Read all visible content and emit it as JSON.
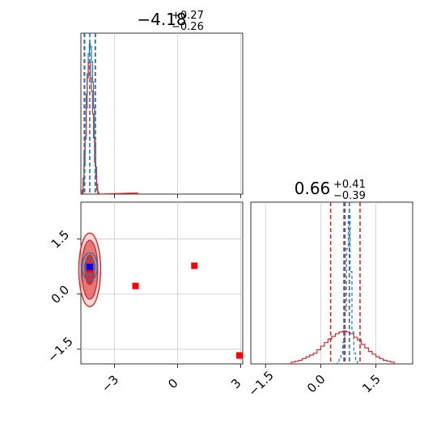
{
  "chart_data": [
    {
      "type": "histogram",
      "panel": "marginal-x",
      "title_value": "−4.18",
      "title_sup": "+0.27",
      "title_sub": "−0.26",
      "xlim": [
        -4.6,
        3.1
      ],
      "x_ticks": [
        -3,
        0,
        3
      ],
      "grid": true,
      "series": [
        {
          "color": "#1f77b4",
          "linestyle": "solid",
          "bins": [
            [
              -4.6,
              -4.55,
              0
            ],
            [
              -4.55,
              -4.5,
              4
            ],
            [
              -4.5,
              -4.45,
              9
            ],
            [
              -4.45,
              -4.4,
              28
            ],
            [
              -4.4,
              -4.35,
              55
            ],
            [
              -4.35,
              -4.3,
              100
            ],
            [
              -4.3,
              -4.25,
              120
            ],
            [
              -4.25,
              -4.2,
              140
            ],
            [
              -4.2,
              -4.15,
              150
            ],
            [
              -4.15,
              -4.1,
              147
            ],
            [
              -4.1,
              -4.05,
              132
            ],
            [
              -4.05,
              -4.0,
              112
            ],
            [
              -4.0,
              -3.95,
              86
            ],
            [
              -3.95,
              -3.9,
              52
            ],
            [
              -3.9,
              -3.85,
              27
            ],
            [
              -3.85,
              -3.8,
              10
            ],
            [
              -3.8,
              -3.75,
              2
            ],
            [
              -3.75,
              -3.7,
              0
            ]
          ]
        },
        {
          "color": "#d62728",
          "linestyle": "solid",
          "bins": [
            [
              -4.6,
              -4.5,
              0
            ],
            [
              -4.5,
              -4.45,
              16
            ],
            [
              -4.45,
              -4.4,
              40
            ],
            [
              -4.4,
              -4.35,
              58
            ],
            [
              -4.35,
              -4.3,
              86
            ],
            [
              -4.3,
              -4.25,
              116
            ],
            [
              -4.25,
              -4.2,
              132
            ],
            [
              -4.2,
              -4.15,
              131
            ],
            [
              -4.15,
              -4.1,
              116
            ],
            [
              -4.1,
              -4.05,
              103
            ],
            [
              -4.05,
              -4.0,
              80
            ],
            [
              -4.0,
              -3.95,
              56
            ],
            [
              -3.95,
              -3.9,
              32
            ],
            [
              -3.9,
              -3.85,
              18
            ],
            [
              -3.85,
              -3.8,
              4
            ],
            [
              -3.8,
              -3.7,
              0
            ],
            [
              -2.1,
              -1.9,
              1
            ],
            [
              -1.9,
              -1.8,
              0
            ]
          ]
        }
      ],
      "vlines": [
        {
          "x": -4.44,
          "color": "#d62728"
        },
        {
          "x": -3.91,
          "color": "#d62728"
        },
        {
          "x": -4.42,
          "color": "#1f77b4"
        },
        {
          "x": -4.18,
          "color": "#1f77b4"
        },
        {
          "x": -3.92,
          "color": "#1f77b4"
        }
      ]
    },
    {
      "type": "scatter",
      "panel": "joint",
      "xlim": [
        -4.6,
        3.1
      ],
      "ylim": [
        -1.9,
        2.5
      ],
      "x_ticks": [
        -3,
        0,
        3
      ],
      "y_ticks": [
        -1.5,
        0.0,
        1.5
      ],
      "grid": true,
      "red_points": [
        {
          "x": -4.18,
          "y": 0.68
        },
        {
          "x": -2.0,
          "y": 0.22
        },
        {
          "x": 0.8,
          "y": 0.77
        },
        {
          "x": 3.0,
          "y": -1.67
        }
      ],
      "blue_points": [
        {
          "x": -4.18,
          "y": 0.74
        }
      ],
      "contours_red": [
        {
          "cx": -4.18,
          "cy": 0.66,
          "rx": 0.22,
          "ry": 0.4,
          "fill": "#d62728",
          "opacity": 0.9
        },
        {
          "cx": -4.18,
          "cy": 0.66,
          "rx": 0.38,
          "ry": 0.8,
          "fill": "#d62728",
          "opacity": 0.55
        },
        {
          "cx": -4.18,
          "cy": 0.66,
          "rx": 0.52,
          "ry": 1.0,
          "fill": "#f1b6b6",
          "opacity": 0.5
        }
      ],
      "contours_blue": [
        {
          "cx": -4.18,
          "cy": 0.74,
          "rx": 0.24,
          "ry": 0.24
        },
        {
          "cx": -4.18,
          "cy": 0.74,
          "rx": 0.36,
          "ry": 0.38
        }
      ]
    },
    {
      "type": "histogram",
      "panel": "marginal-y",
      "title_value": "0.66",
      "title_sup": "+0.41",
      "title_sub": "−0.39",
      "xlim": [
        -1.9,
        2.5
      ],
      "x_ticks": [
        -1.5,
        0.0,
        1.5
      ],
      "grid": true,
      "series": [
        {
          "color": "#1f77b4",
          "linestyle": "dashed",
          "bins": [
            [
              0.4,
              0.45,
              0
            ],
            [
              0.45,
              0.5,
              2
            ],
            [
              0.5,
              0.55,
              6
            ],
            [
              0.55,
              0.6,
              12
            ],
            [
              0.6,
              0.65,
              24
            ],
            [
              0.65,
              0.7,
              60
            ],
            [
              0.7,
              0.75,
              130
            ],
            [
              0.75,
              0.8,
              168
            ],
            [
              0.8,
              0.85,
              104
            ],
            [
              0.85,
              0.9,
              36
            ],
            [
              0.9,
              0.95,
              12
            ],
            [
              0.95,
              1.0,
              4
            ],
            [
              1.0,
              1.05,
              0
            ]
          ]
        },
        {
          "color": "#d62728",
          "linestyle": "solid",
          "bins": [
            [
              -0.8,
              -0.7,
              2
            ],
            [
              -0.7,
              -0.6,
              3
            ],
            [
              -0.6,
              -0.5,
              4
            ],
            [
              -0.5,
              -0.4,
              6
            ],
            [
              -0.4,
              -0.3,
              8
            ],
            [
              -0.3,
              -0.2,
              10
            ],
            [
              -0.2,
              -0.1,
              12
            ],
            [
              -0.1,
              0.0,
              16
            ],
            [
              0.0,
              0.1,
              20
            ],
            [
              0.1,
              0.2,
              24
            ],
            [
              0.2,
              0.3,
              28
            ],
            [
              0.3,
              0.4,
              31
            ],
            [
              0.4,
              0.5,
              34
            ],
            [
              0.5,
              0.6,
              36
            ],
            [
              0.6,
              0.7,
              37
            ],
            [
              0.7,
              0.8,
              36
            ],
            [
              0.8,
              0.9,
              34
            ],
            [
              0.9,
              1.0,
              30
            ],
            [
              1.0,
              1.1,
              27
            ],
            [
              1.1,
              1.2,
              22
            ],
            [
              1.2,
              1.3,
              18
            ],
            [
              1.3,
              1.4,
              14
            ],
            [
              1.4,
              1.5,
              11
            ],
            [
              1.5,
              1.6,
              8
            ],
            [
              1.6,
              1.7,
              6
            ],
            [
              1.7,
              1.8,
              4
            ],
            [
              1.8,
              1.9,
              3
            ],
            [
              1.9,
              2.0,
              2
            ]
          ]
        }
      ],
      "vlines": [
        {
          "x": 0.27,
          "color": "#d62728"
        },
        {
          "x": 0.66,
          "color": "#d62728"
        },
        {
          "x": 1.07,
          "color": "#d62728"
        },
        {
          "x": 0.63,
          "color": "#1f77b4"
        },
        {
          "x": 0.78,
          "color": "#1f77b4"
        }
      ]
    }
  ]
}
